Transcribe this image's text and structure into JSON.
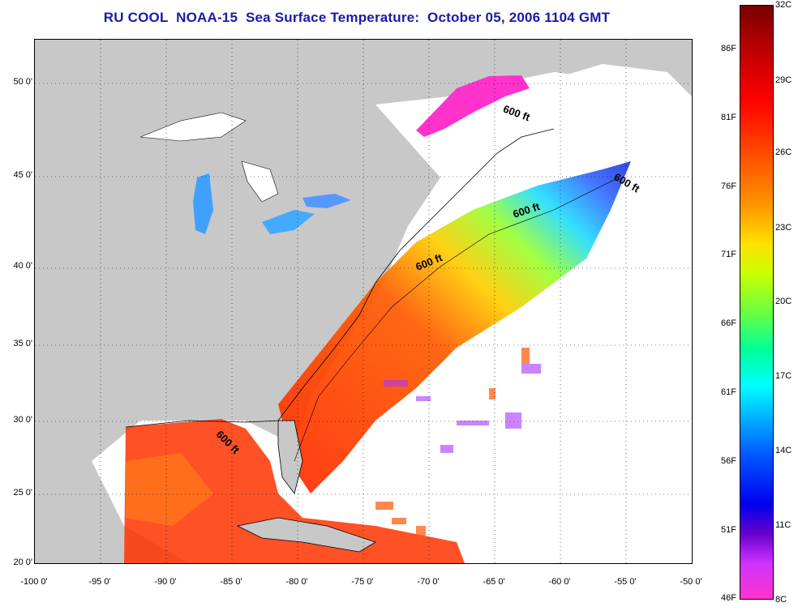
{
  "title": "RU COOL  NOAA-15  Sea Surface Temperature:  October 05, 2006 1104 GMT",
  "lat_labels": [
    "50 0'",
    "45 0'",
    "40 0'",
    "35 0'",
    "30 0'",
    "25 0'",
    "20 0'"
  ],
  "lon_labels": [
    "-100 0'",
    "-95 0'",
    "-90 0'",
    "-85 0'",
    "-80 0'",
    "-75 0'",
    "-70 0'",
    "-65 0'",
    "-60 0'",
    "-55 0'",
    "-50 0'"
  ],
  "contour_labels": [
    "600 ft",
    "600 ft",
    "600 ft",
    "600 ft",
    "600 ft"
  ],
  "colorbar": {
    "fahrenheit": [
      "86F",
      "81F",
      "76F",
      "71F",
      "66F",
      "61F",
      "56F",
      "51F",
      "46F"
    ],
    "celsius": [
      "32C",
      "29C",
      "26C",
      "23C",
      "20C",
      "17C",
      "14C",
      "11C",
      "8C"
    ]
  },
  "colors": {
    "land": "#c8c8c8",
    "ocean_nodata": "#ffffff",
    "title": "#1a1aa8"
  }
}
